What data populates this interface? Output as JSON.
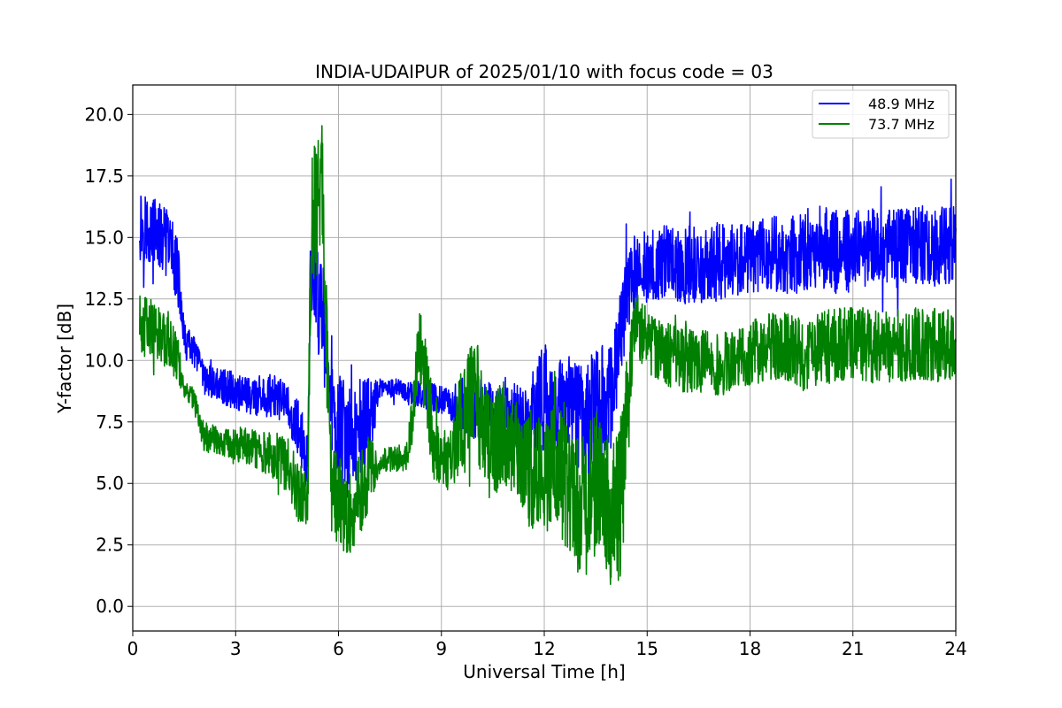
{
  "chart_data": {
    "type": "line",
    "title": "INDIA-UDAIPUR of 2025/01/10 with focus code = 03",
    "xlabel": "Universal Time [h]",
    "ylabel": "Y-factor [dB]",
    "xlim": [
      0,
      24
    ],
    "ylim": [
      -1.0,
      21.2
    ],
    "xticks": [
      0,
      3,
      6,
      9,
      12,
      15,
      18,
      21,
      24
    ],
    "xtick_labels": [
      "0",
      "3",
      "6",
      "9",
      "12",
      "15",
      "18",
      "21",
      "24"
    ],
    "yticks": [
      0,
      2.5,
      5,
      7.5,
      10,
      12.5,
      15,
      17.5,
      20
    ],
    "ytick_labels": [
      "0.0",
      "2.5",
      "5.0",
      "7.5",
      "10.0",
      "12.5",
      "15.0",
      "17.5",
      "20.0"
    ],
    "grid": true,
    "legend_position": "top-right",
    "series": [
      {
        "name": "48.9 MHz",
        "color": "#0000ff",
        "x": [
          0.2,
          0.5,
          0.8,
          1.1,
          1.3,
          1.5,
          1.8,
          2.1,
          2.5,
          3.0,
          3.5,
          4.0,
          4.5,
          4.9,
          5.1,
          5.2,
          5.4,
          5.5,
          5.6,
          5.8,
          6.0,
          6.3,
          6.6,
          6.9,
          7.2,
          7.6,
          8.0,
          8.4,
          8.8,
          9.2,
          9.6,
          10.0,
          10.4,
          10.8,
          11.2,
          11.6,
          12.0,
          12.4,
          12.8,
          13.2,
          13.6,
          14.0,
          14.3,
          14.6,
          15.0,
          15.5,
          16.0,
          16.5,
          17.0,
          17.5,
          18.0,
          18.5,
          19.0,
          19.5,
          20.0,
          20.5,
          21.0,
          21.5,
          22.0,
          22.5,
          23.0,
          23.5,
          24.0
        ],
        "y": [
          15.6,
          15.3,
          15.0,
          14.6,
          13.8,
          10.8,
          10.3,
          9.2,
          9.0,
          8.8,
          8.5,
          8.6,
          8.2,
          7.0,
          5.5,
          14.5,
          13.0,
          12.0,
          11.0,
          8.0,
          7.0,
          6.6,
          7.2,
          7.6,
          8.8,
          8.9,
          8.7,
          8.6,
          8.5,
          8.3,
          8.1,
          8.0,
          7.8,
          7.5,
          7.6,
          7.8,
          8.5,
          8.2,
          8.0,
          7.6,
          8.0,
          8.8,
          12.0,
          13.6,
          13.8,
          14.0,
          13.9,
          13.9,
          14.0,
          14.1,
          14.2,
          14.5,
          14.3,
          14.4,
          14.6,
          14.4,
          14.5,
          14.6,
          14.5,
          14.6,
          14.7,
          14.6,
          14.8
        ],
        "spread": [
          1.6,
          1.4,
          1.4,
          1.4,
          1.4,
          0.7,
          0.7,
          0.6,
          0.7,
          0.8,
          0.8,
          0.9,
          0.9,
          1.2,
          1.2,
          2.5,
          2.5,
          3.0,
          2.5,
          2.0,
          2.5,
          2.5,
          2.2,
          1.8,
          0.4,
          0.4,
          0.5,
          0.6,
          0.6,
          0.6,
          1.2,
          1.3,
          1.3,
          1.4,
          1.5,
          1.6,
          2.2,
          2.0,
          2.2,
          2.5,
          2.6,
          2.5,
          2.0,
          1.5,
          1.5,
          1.5,
          1.6,
          1.6,
          1.6,
          1.5,
          1.5,
          1.6,
          1.6,
          1.7,
          1.7,
          1.7,
          1.7,
          1.6,
          1.6,
          1.6,
          1.6,
          1.6,
          1.6
        ]
      },
      {
        "name": "73.7 MHz",
        "color": "#008000",
        "x": [
          0.2,
          0.5,
          0.8,
          1.1,
          1.3,
          1.5,
          1.8,
          2.1,
          2.5,
          3.0,
          3.5,
          4.0,
          4.5,
          4.9,
          5.1,
          5.2,
          5.4,
          5.5,
          5.6,
          5.8,
          6.0,
          6.3,
          6.6,
          6.9,
          7.2,
          7.6,
          8.0,
          8.4,
          8.8,
          9.2,
          9.6,
          10.0,
          10.4,
          10.8,
          11.2,
          11.6,
          12.0,
          12.4,
          12.8,
          13.2,
          13.6,
          14.0,
          14.3,
          14.6,
          15.0,
          15.5,
          16.0,
          16.5,
          17.0,
          17.5,
          18.0,
          18.5,
          19.0,
          19.5,
          20.0,
          20.5,
          21.0,
          21.5,
          22.0,
          22.5,
          23.0,
          23.5,
          24.0
        ],
        "y": [
          11.5,
          11.3,
          11.2,
          10.7,
          10.2,
          8.8,
          8.3,
          6.8,
          6.8,
          6.6,
          6.5,
          6.2,
          5.8,
          4.5,
          4.0,
          15.5,
          16.5,
          18.0,
          14.0,
          5.0,
          4.2,
          3.8,
          4.5,
          5.5,
          5.9,
          6.0,
          6.1,
          10.5,
          6.5,
          5.8,
          7.5,
          8.5,
          6.5,
          7.0,
          6.5,
          5.5,
          5.5,
          5.8,
          4.5,
          4.0,
          5.5,
          3.5,
          5.0,
          11.5,
          10.8,
          10.3,
          10.0,
          10.0,
          9.8,
          10.0,
          10.3,
          10.5,
          10.6,
          10.2,
          10.5,
          10.6,
          10.7,
          10.6,
          10.5,
          10.6,
          10.7,
          10.6,
          10.8
        ],
        "spread": [
          1.3,
          1.2,
          1.2,
          1.2,
          1.0,
          0.4,
          0.5,
          0.6,
          0.6,
          0.7,
          0.8,
          0.9,
          1.2,
          1.3,
          1.2,
          2.5,
          3.0,
          2.5,
          3.5,
          2.0,
          2.0,
          1.8,
          1.8,
          1.5,
          0.5,
          0.5,
          0.6,
          2.0,
          1.5,
          1.2,
          2.5,
          2.5,
          2.2,
          2.2,
          2.0,
          2.5,
          2.5,
          2.5,
          2.8,
          3.0,
          3.0,
          3.0,
          3.5,
          1.5,
          1.3,
          1.3,
          1.3,
          1.3,
          1.4,
          1.3,
          1.3,
          1.4,
          1.4,
          1.5,
          1.5,
          1.5,
          1.5,
          1.5,
          1.5,
          1.5,
          1.5,
          1.5,
          1.5
        ]
      }
    ]
  }
}
